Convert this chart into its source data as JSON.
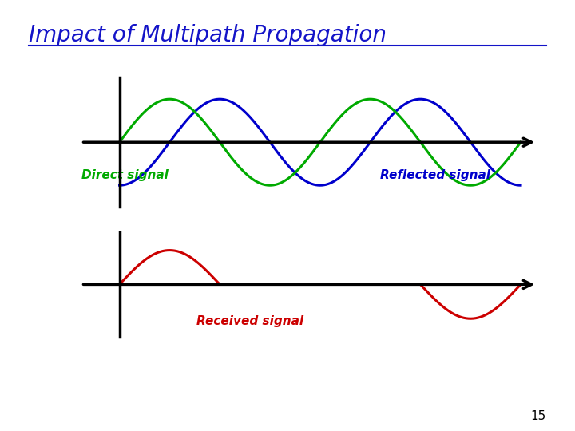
{
  "title": "Impact of Multipath Propagation",
  "title_color": "#1414C8",
  "title_fontsize": 20,
  "background_color": "#FFFFFF",
  "direct_color": "#00AA00",
  "reflected_color": "#0000CC",
  "received_color": "#CC0000",
  "axis_color": "#000000",
  "direct_label": "Direct signal",
  "reflected_label": "Reflected signal",
  "received_label": "Received signal",
  "label_fontsize": 11,
  "page_number": "15"
}
